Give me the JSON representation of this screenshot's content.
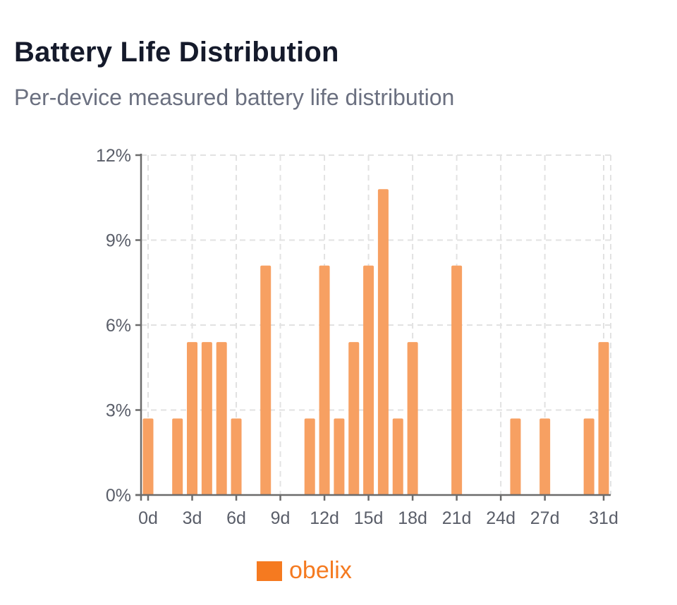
{
  "chart_data": {
    "type": "bar",
    "title": "Battery Life Distribution",
    "subtitle": "Per-device measured battery life distribution",
    "xlabel": "",
    "ylabel": "",
    "ylim": [
      0,
      12
    ],
    "xlim": [
      0,
      31
    ],
    "y_ticks": [
      0,
      3,
      6,
      9,
      12
    ],
    "y_tick_labels": [
      "0%",
      "3%",
      "6%",
      "9%",
      "12%"
    ],
    "x_ticks": [
      0,
      3,
      6,
      9,
      12,
      15,
      18,
      21,
      24,
      27,
      31
    ],
    "x_tick_labels": [
      "0d",
      "3d",
      "6d",
      "9d",
      "12d",
      "15d",
      "18d",
      "21d",
      "24d",
      "27d",
      "31d"
    ],
    "grid": true,
    "legend_position": "bottom-center",
    "series": [
      {
        "name": "obelix",
        "color": "#f7a062",
        "legend_color": "#f57a20",
        "x": [
          0,
          2,
          3,
          4,
          5,
          6,
          8,
          11,
          12,
          13,
          14,
          15,
          16,
          17,
          18,
          21,
          25,
          27,
          30,
          31
        ],
        "values": [
          2.7,
          2.7,
          5.4,
          5.4,
          5.4,
          2.7,
          8.1,
          2.7,
          8.1,
          2.7,
          5.4,
          8.1,
          10.8,
          2.7,
          5.4,
          8.1,
          2.7,
          2.7,
          2.7,
          5.4
        ]
      }
    ]
  }
}
